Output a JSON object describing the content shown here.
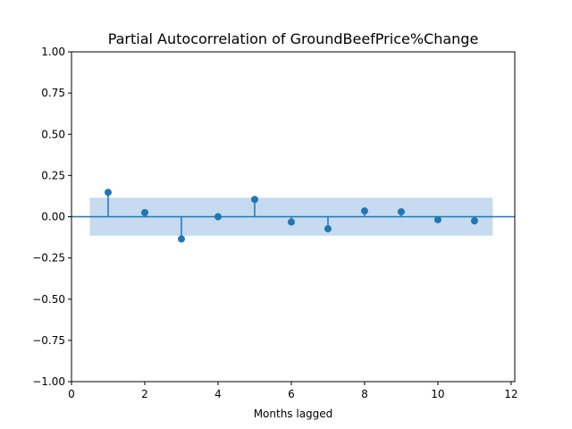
{
  "chart_data": {
    "type": "stem",
    "title": "Partial Autocorrelation of GroundBeefPrice%Change",
    "xlabel": "Months lagged",
    "ylabel": "",
    "xlim": [
      0,
      12.1
    ],
    "ylim": [
      -1.0,
      1.0
    ],
    "x_ticks": [
      "0",
      "2",
      "4",
      "6",
      "8",
      "10",
      "12"
    ],
    "x_tick_values": [
      0,
      2,
      4,
      6,
      8,
      10,
      12
    ],
    "y_ticks": [
      "−1.00",
      "−0.75",
      "−0.50",
      "−0.25",
      "0.00",
      "0.25",
      "0.50",
      "0.75",
      "1.00"
    ],
    "y_tick_values": [
      -1.0,
      -0.75,
      -0.5,
      -0.25,
      0.0,
      0.25,
      0.5,
      0.75,
      1.0
    ],
    "lags": [
      1,
      2,
      3,
      4,
      5,
      6,
      7,
      8,
      9,
      10,
      11
    ],
    "values": [
      0.148,
      0.025,
      -0.135,
      0.0,
      0.105,
      -0.032,
      -0.073,
      0.035,
      0.03,
      -0.018,
      -0.025
    ],
    "confidence_band": {
      "x_range": [
        0.5,
        11.5
      ],
      "lower": -0.115,
      "upper": 0.115
    },
    "colors": {
      "marker": "#1f77b4",
      "band": "#c6dbef",
      "zero_line": "#1f77b4"
    },
    "grid": false,
    "legend": "none"
  }
}
